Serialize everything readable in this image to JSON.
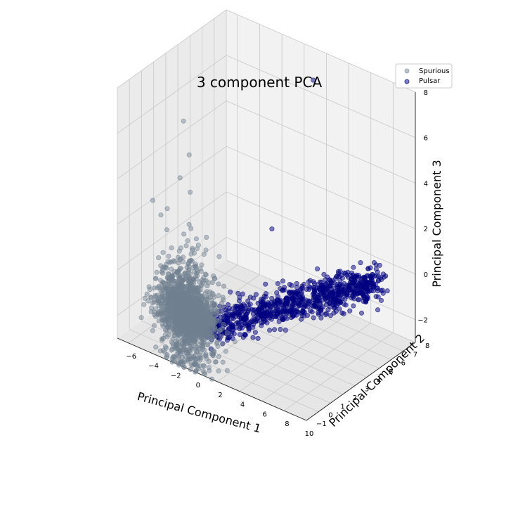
{
  "chart_data": {
    "type": "scatter",
    "title": "3 component PCA",
    "xlabel": "Principal Component 1",
    "ylabel": "Principal Component 2",
    "zlabel": "Principal Component 3",
    "xlim": [
      -7,
      10
    ],
    "ylim": [
      -1,
      8
    ],
    "zlim": [
      -3,
      8
    ],
    "x_ticks": [
      "−6",
      "−4",
      "−2",
      "0",
      "2",
      "4",
      "6",
      "8",
      "10"
    ],
    "y_ticks": [
      "−1",
      "0",
      "1",
      "2",
      "3",
      "4",
      "5",
      "6",
      "7",
      "8"
    ],
    "z_ticks": [
      "−2",
      "0",
      "2",
      "4",
      "6",
      "8"
    ],
    "grid": true,
    "legend_position": "top-right",
    "series": [
      {
        "name": "Spurious",
        "color": "#708090",
        "alpha": 0.45,
        "cluster": {
          "x_mean": -1.3,
          "x_sd": 1.2,
          "y_mean": -0.5,
          "y_sd": 0.35,
          "z_mean": -0.9,
          "z_sd": 1.3
        },
        "values": [
          [
            -1,
            -0.5,
            -1
          ],
          [
            -2,
            -0.4,
            -0.5
          ],
          [
            0,
            -0.6,
            -1.5
          ],
          [
            -1.5,
            -0.3,
            1.0
          ],
          [
            -0.8,
            -0.5,
            2.0
          ],
          [
            -1.2,
            -0.4,
            3.0
          ],
          [
            -1.0,
            -0.5,
            4.5
          ],
          [
            -1.3,
            -0.3,
            6.0
          ],
          [
            -1.6,
            -0.5,
            7.5
          ],
          [
            -4.5,
            -0.5,
            -1.5
          ],
          [
            -5.5,
            -0.4,
            -2.0
          ],
          [
            1.0,
            -0.5,
            -2.0
          ],
          [
            -3.0,
            -0.3,
            -0.8
          ],
          [
            0.5,
            -0.4,
            0.8
          ],
          [
            -1.8,
            -0.6,
            5.0
          ]
        ]
      },
      {
        "name": "Pulsar",
        "color": "#000080",
        "alpha": 0.5,
        "cluster": {
          "x_start": -0.5,
          "x_end": 7.5,
          "y_start": 0.2,
          "y_end": 7.0,
          "z_start": -1.6,
          "z_end": -0.5
        },
        "values": [
          [
            0.5,
            1.0,
            -1.5
          ],
          [
            2.0,
            2.5,
            -1.3
          ],
          [
            4.0,
            4.0,
            -1.1
          ],
          [
            6.0,
            5.8,
            -0.8
          ],
          [
            7.5,
            7.0,
            -0.6
          ],
          [
            3.0,
            6.0,
            7.8
          ],
          [
            2.0,
            3.5,
            2.0
          ],
          [
            5.0,
            4.5,
            0.5
          ],
          [
            7.0,
            6.5,
            -0.2
          ],
          [
            1.0,
            2.0,
            -0.5
          ]
        ]
      }
    ]
  }
}
